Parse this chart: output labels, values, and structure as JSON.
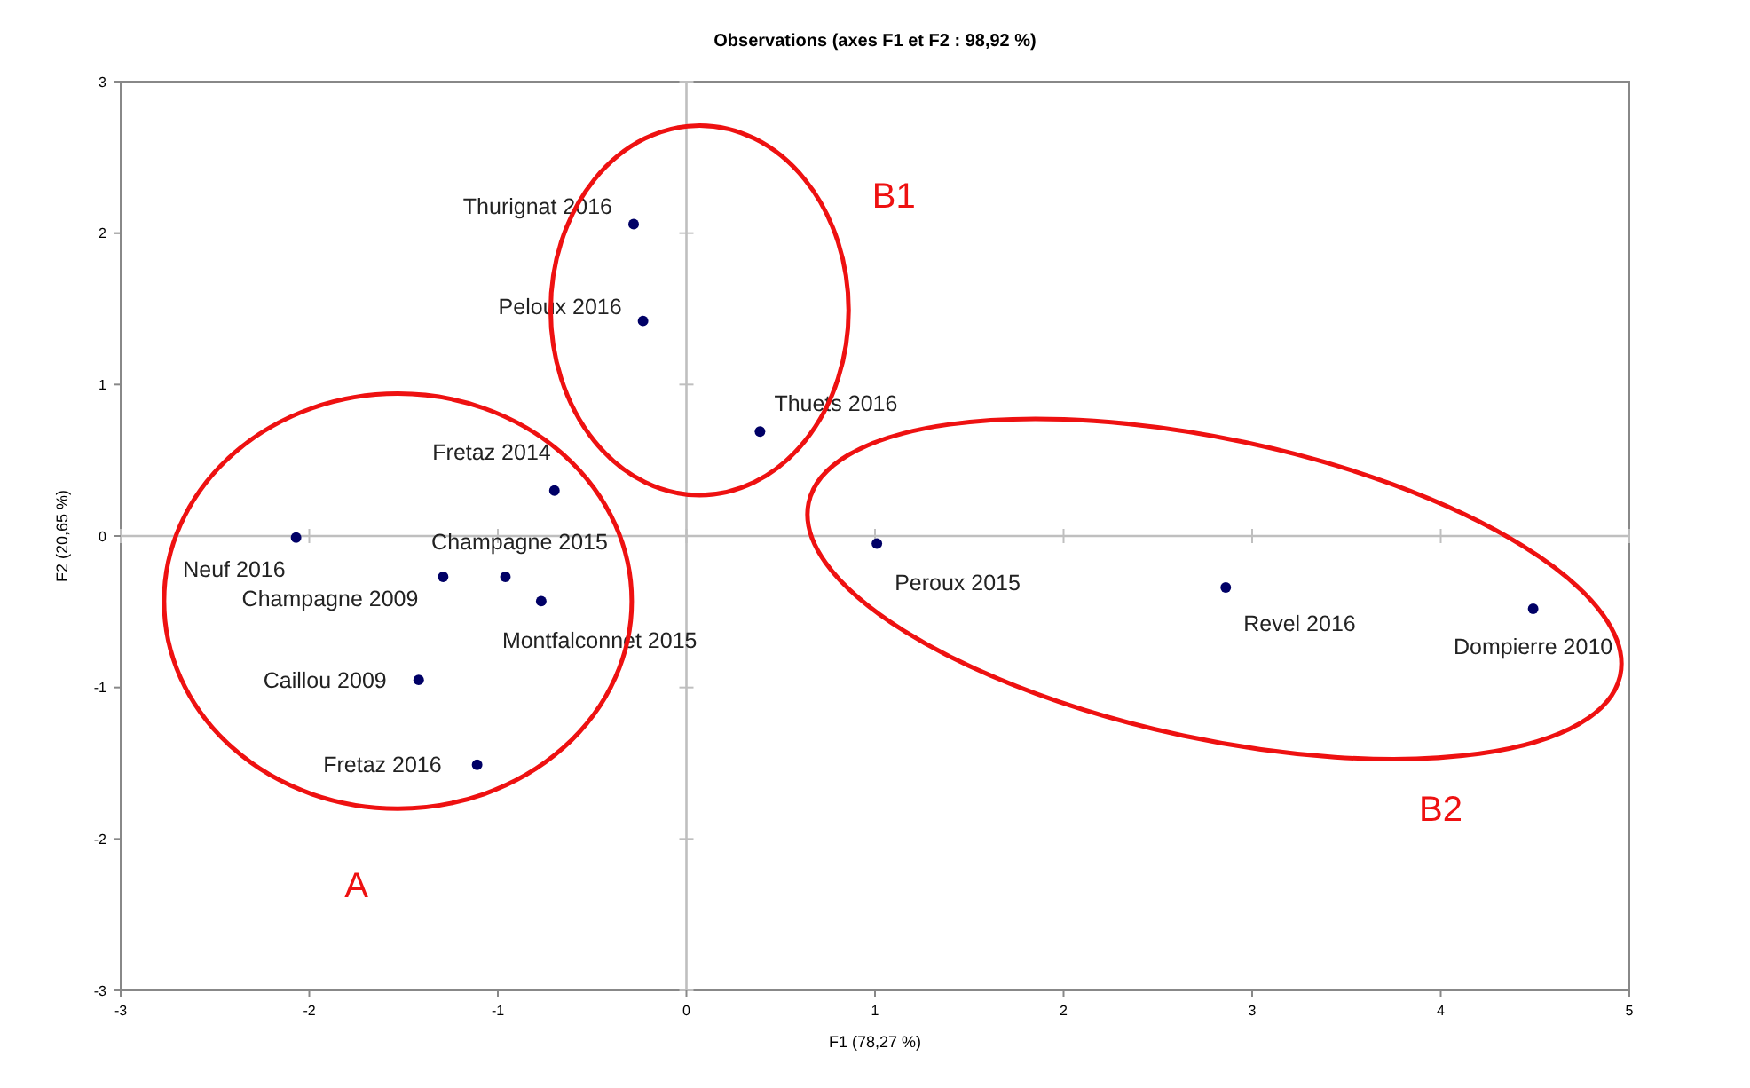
{
  "chart_data": {
    "type": "scatter",
    "title": "Observations (axes F1 et F2 : 98,92 %)",
    "xlabel": "F1 (78,27 %)",
    "ylabel": "F2 (20,65 %)",
    "xlim": [
      -3,
      5
    ],
    "xticks": [
      -3,
      -2,
      -1,
      0,
      1,
      2,
      3,
      4,
      5
    ],
    "ylim": [
      -3,
      3
    ],
    "yticks": [
      -3,
      -2,
      -1,
      0,
      1,
      2,
      3
    ],
    "marker": "circle",
    "annotations": [
      "A",
      "B1",
      "B2"
    ],
    "series": [
      {
        "color": "#000066",
        "x": [
          -0.28,
          -0.23,
          0.39,
          -0.7,
          -2.07,
          -0.96,
          -1.29,
          -0.77,
          -1.42,
          -1.11,
          1.01,
          2.86,
          4.49
        ],
        "values": [
          2.06,
          1.42,
          0.69,
          0.3,
          -0.01,
          -0.27,
          -0.27,
          -0.43,
          -0.95,
          -1.51,
          -0.05,
          -0.34,
          -0.48
        ],
        "value_labels": [
          "Thurignat 2016",
          "Peloux 2016",
          "Thuets 2016",
          "Fretaz 2014",
          "Neuf 2016",
          "Champagne 2015",
          "Champagne 2009",
          "Montfalconnet 2015",
          "Caillou 2009",
          "Fretaz 2016",
          "Peroux 2015",
          "Revel 2016",
          "Dompierre 2010"
        ]
      }
    ]
  }
}
